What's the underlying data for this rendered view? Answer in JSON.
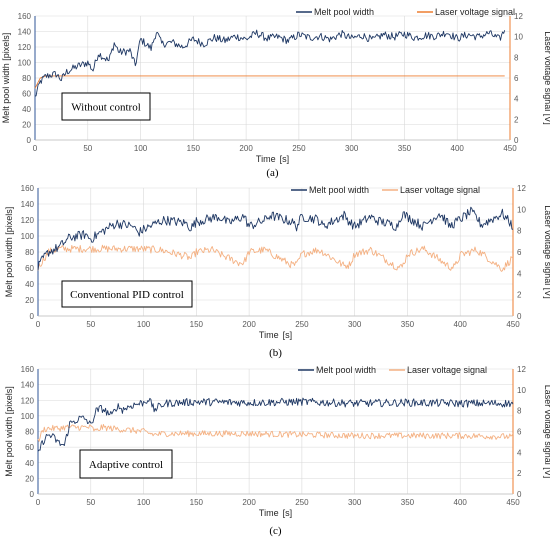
{
  "chart_data": [
    {
      "type": "line",
      "panel_caption": "(a)",
      "annotation": "Without control",
      "xlabel": "Time",
      "xunit": "[s]",
      "ylabel_left": "Melt pool width [pixels]",
      "ylabel_right": "Laser voltage signal [V]",
      "xlim": [
        0,
        450
      ],
      "ylim_left": [
        0,
        160
      ],
      "ylim_right": [
        0,
        12
      ],
      "x_ticks": [
        0,
        50,
        100,
        150,
        200,
        250,
        300,
        350,
        400,
        450
      ],
      "y_ticks_left": [
        0,
        20,
        40,
        60,
        80,
        100,
        120,
        140,
        160
      ],
      "y_ticks_right": [
        0,
        2,
        4,
        6,
        8,
        10,
        12
      ],
      "legend_position": "top-right",
      "series": [
        {
          "name": "Melt pool width",
          "color": "#1f3864",
          "axis": "left",
          "x": [
            0,
            5,
            10,
            15,
            20,
            25,
            30,
            40,
            50,
            55,
            60,
            70,
            75,
            80,
            90,
            95,
            100,
            110,
            115,
            120,
            130,
            140,
            150,
            160,
            170,
            180,
            190,
            200,
            210,
            220,
            230,
            240,
            250,
            260,
            270,
            280,
            290,
            300,
            310,
            320,
            330,
            340,
            350,
            360,
            370,
            380,
            390,
            400,
            410,
            420,
            430,
            440,
            445
          ],
          "values": [
            55,
            75,
            82,
            84,
            85,
            78,
            88,
            95,
            100,
            90,
            112,
            102,
            125,
            113,
            115,
            96,
            130,
            118,
            140,
            124,
            126,
            120,
            130,
            124,
            132,
            128,
            134,
            130,
            138,
            131,
            133,
            128,
            136,
            132,
            134,
            130,
            137,
            131,
            135,
            129,
            136,
            133,
            137,
            132,
            135,
            134,
            139,
            131,
            136,
            133,
            138,
            130,
            142
          ],
          "noise": 5
        },
        {
          "name": "Laser voltage signal",
          "color": "#ed7d31",
          "axis": "right",
          "x": [
            0,
            5,
            10,
            15,
            445
          ],
          "values": [
            5.0,
            6.0,
            6.2,
            6.2,
            6.2
          ],
          "noise": 0
        }
      ]
    },
    {
      "type": "line",
      "panel_caption": "(b)",
      "annotation": "Conventional PID control",
      "xlabel": "Time",
      "xunit": "[s]",
      "ylabel_left": "Melt pool width [pixels]",
      "ylabel_right": "Laser voltage signal [V]",
      "xlim": [
        0,
        450
      ],
      "ylim_left": [
        0,
        160
      ],
      "ylim_right": [
        0,
        12
      ],
      "x_ticks": [
        0,
        50,
        100,
        150,
        200,
        250,
        300,
        350,
        400,
        450
      ],
      "y_ticks_left": [
        0,
        20,
        40,
        60,
        80,
        100,
        120,
        140,
        160
      ],
      "y_ticks_right": [
        0,
        2,
        4,
        6,
        8,
        10,
        12
      ],
      "legend_position": "top-right",
      "series": [
        {
          "name": "Melt pool width",
          "color": "#1f3864",
          "axis": "left",
          "x": [
            0,
            5,
            10,
            20,
            25,
            30,
            45,
            50,
            60,
            70,
            75,
            90,
            95,
            100,
            115,
            120,
            140,
            145,
            150,
            170,
            175,
            180,
            195,
            200,
            215,
            220,
            240,
            245,
            250,
            265,
            270,
            290,
            295,
            300,
            315,
            320,
            340,
            345,
            350,
            365,
            370,
            380,
            385,
            390,
            410,
            415,
            420,
            440,
            450
          ],
          "values": [
            60,
            72,
            80,
            86,
            92,
            98,
            102,
            96,
            105,
            113,
            116,
            112,
            104,
            108,
            118,
            120,
            116,
            110,
            118,
            124,
            122,
            116,
            125,
            112,
            120,
            126,
            118,
            112,
            124,
            121,
            112,
            126,
            118,
            112,
            124,
            120,
            112,
            128,
            124,
            112,
            118,
            128,
            122,
            112,
            130,
            124,
            114,
            128,
            112
          ],
          "noise": 6
        },
        {
          "name": "Laser voltage signal",
          "color": "#f4b183",
          "axis": "right",
          "x": [
            0,
            5,
            10,
            20,
            45,
            70,
            95,
            115,
            120,
            140,
            145,
            150,
            165,
            170,
            190,
            195,
            200,
            215,
            220,
            240,
            245,
            250,
            265,
            270,
            290,
            295,
            300,
            315,
            320,
            340,
            345,
            350,
            365,
            370,
            390,
            395,
            400,
            415,
            420,
            440,
            450
          ],
          "values": [
            4.5,
            5.3,
            6.0,
            6.3,
            6.3,
            6.3,
            6.3,
            6.2,
            6.1,
            5.6,
            5.4,
            6.0,
            6.2,
            5.9,
            5.0,
            5.0,
            6.0,
            6.2,
            5.9,
            4.8,
            4.8,
            5.8,
            6.2,
            6.0,
            4.7,
            4.8,
            5.8,
            6.2,
            5.9,
            4.6,
            4.6,
            5.8,
            6.3,
            6.0,
            4.6,
            4.6,
            5.7,
            6.2,
            5.9,
            4.4,
            5.5
          ],
          "noise": 0.35
        }
      ]
    },
    {
      "type": "line",
      "panel_caption": "(c)",
      "annotation": "Adaptive control",
      "xlabel": "Time",
      "xunit": "[s]",
      "ylabel_left": "Melt pool width [pixels]",
      "ylabel_right": "Laser voltage signal [V]",
      "xlim": [
        0,
        450
      ],
      "ylim_left": [
        0,
        160
      ],
      "ylim_right": [
        0,
        12
      ],
      "x_ticks": [
        0,
        50,
        100,
        150,
        200,
        250,
        300,
        350,
        400,
        450
      ],
      "y_ticks_left": [
        0,
        20,
        40,
        60,
        80,
        100,
        120,
        140,
        160
      ],
      "y_ticks_right": [
        0,
        2,
        4,
        6,
        8,
        10,
        12
      ],
      "legend_position": "top-right",
      "series": [
        {
          "name": "Melt pool width",
          "color": "#1f3864",
          "axis": "left",
          "x": [
            0,
            5,
            10,
            15,
            20,
            25,
            30,
            40,
            45,
            50,
            55,
            60,
            70,
            75,
            80,
            90,
            100,
            105,
            110,
            120,
            150,
            200,
            250,
            300,
            350,
            400,
            450
          ],
          "values": [
            52,
            68,
            76,
            72,
            65,
            62,
            90,
            97,
            96,
            88,
            106,
            110,
            100,
            113,
            108,
            114,
            117,
            122,
            108,
            116,
            118,
            117,
            118,
            116,
            117,
            116,
            116
          ],
          "noise": 5
        },
        {
          "name": "Laser voltage signal",
          "color": "#f4b183",
          "axis": "right",
          "x": [
            0,
            5,
            10,
            20,
            25,
            30,
            40,
            50,
            55,
            60,
            70,
            100,
            110,
            120,
            150,
            200,
            250,
            300,
            350,
            400,
            450
          ],
          "values": [
            5.0,
            6.2,
            6.3,
            6.3,
            6.4,
            6.4,
            6.4,
            6.4,
            6.0,
            6.4,
            6.3,
            6.0,
            5.7,
            5.8,
            5.8,
            5.8,
            5.7,
            5.6,
            5.6,
            5.6,
            5.5
          ],
          "noise": 0.3
        }
      ]
    }
  ]
}
